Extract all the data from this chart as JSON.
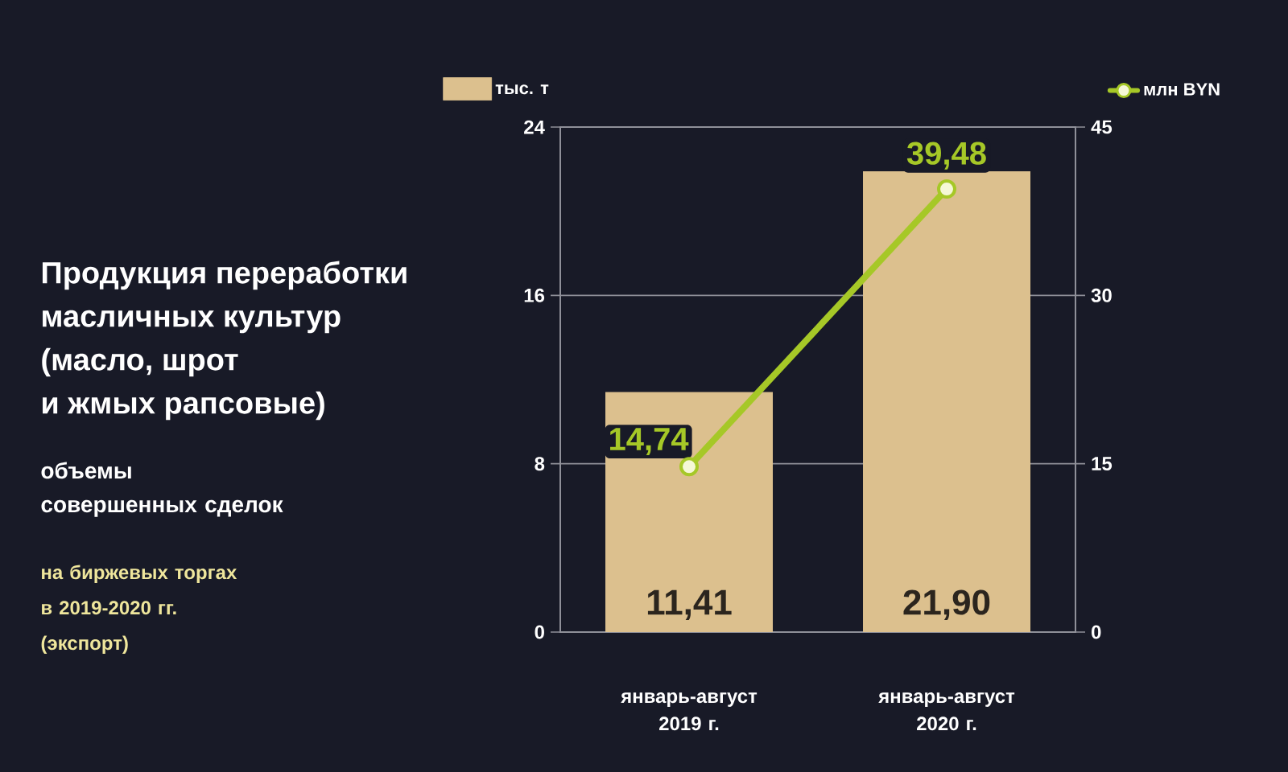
{
  "chart_data": {
    "type": "bar",
    "title": "Продукция переработки масличных культур (масло, шрот и жмых рапсовые)",
    "subtitle": "объемы совершенных сделок",
    "annotations": [
      "на биржевых торгах в 2019-2020 гг. (экспорт)"
    ],
    "categories": [
      "январь-август 2019 г.",
      "январь-август 2020 г."
    ],
    "series": [
      {
        "name": "тыс. т",
        "color": "#dcc08e",
        "values": [
          11.41,
          21.9
        ],
        "value_labels": [
          "11,41",
          "21,90"
        ]
      },
      {
        "name": "млн BYN",
        "type": "line",
        "axis": "y2",
        "color": "#a6c827",
        "marker": "circle",
        "values": [
          14.74,
          39.48
        ],
        "value_labels": [
          "14,74",
          "39,48"
        ]
      }
    ],
    "ylim": [
      0,
      24
    ],
    "yticks": [
      0,
      8,
      16,
      24
    ],
    "y2lim": [
      0,
      45
    ],
    "y2ticks": [
      0,
      15,
      30,
      45
    ],
    "grid": "y",
    "legend": "top"
  }
}
